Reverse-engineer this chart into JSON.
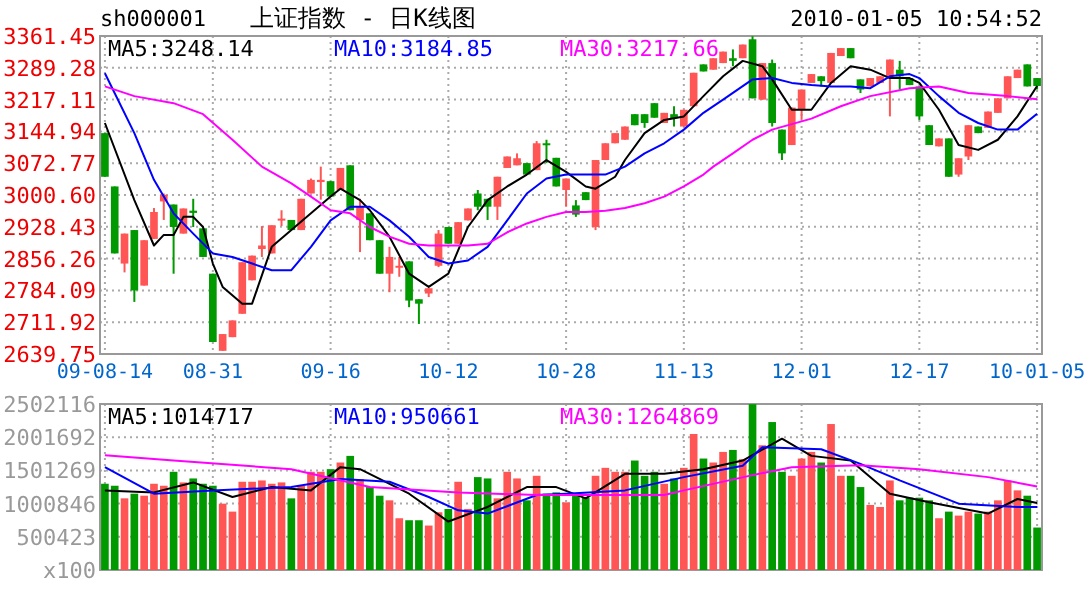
{
  "chart_data": [
    {
      "type": "candlestick",
      "title": "上证指数 - 日K线图",
      "annotations": [
        "sh000001",
        "2010-01-05 10:54:52"
      ],
      "categories": [
        "09-08-14",
        null,
        null,
        null,
        null,
        null,
        null,
        null,
        null,
        null,
        null,
        "08-31",
        null,
        null,
        null,
        null,
        null,
        null,
        null,
        null,
        null,
        null,
        null,
        "09-16",
        null,
        null,
        null,
        null,
        null,
        null,
        null,
        null,
        null,
        null,
        null,
        "10-12",
        null,
        null,
        null,
        null,
        null,
        null,
        null,
        null,
        null,
        null,
        null,
        "10-28",
        null,
        null,
        null,
        null,
        null,
        null,
        null,
        null,
        null,
        null,
        null,
        "11-13",
        null,
        null,
        null,
        null,
        null,
        null,
        null,
        null,
        null,
        null,
        null,
        "12-01",
        null,
        null,
        null,
        null,
        null,
        null,
        null,
        null,
        null,
        null,
        null,
        "12-17",
        null,
        null,
        null,
        null,
        null,
        null,
        null,
        null,
        null,
        null,
        null,
        "10-01-05"
      ],
      "ohlc": [
        [
          3141,
          3141,
          3042,
          3042
        ],
        [
          3020,
          3020,
          2868,
          2868
        ],
        [
          2845,
          2913,
          2825,
          2913
        ],
        [
          2921,
          2921,
          2758,
          2784
        ],
        [
          2795,
          2898,
          2795,
          2898
        ],
        [
          2901,
          2971,
          2901,
          2962
        ],
        [
          2986,
          3004,
          2944,
          3001
        ],
        [
          2979,
          2979,
          2822,
          2928
        ],
        [
          2913,
          2970,
          2913,
          2970
        ],
        [
          2965,
          2992,
          2928,
          2960
        ],
        [
          2925,
          2925,
          2860,
          2860
        ],
        [
          2822,
          2822,
          2667,
          2667
        ],
        [
          2647,
          2685,
          2647,
          2685
        ],
        [
          2678,
          2716,
          2678,
          2716
        ],
        [
          2731,
          2848,
          2731,
          2848
        ],
        [
          2807,
          2863,
          2807,
          2863
        ],
        [
          2878,
          2930,
          2860,
          2886
        ],
        [
          2868,
          2932,
          2868,
          2932
        ],
        [
          2944,
          2966,
          2930,
          2947
        ],
        [
          2944,
          2944,
          2921,
          2921
        ],
        [
          2921,
          2992,
          2921,
          2992
        ],
        [
          3004,
          3038,
          3004,
          3035
        ],
        [
          3030,
          3065,
          2990,
          3035
        ],
        [
          3032,
          3032,
          2997,
          2997
        ],
        [
          3012,
          3062,
          3012,
          3062
        ],
        [
          3068,
          3068,
          2966,
          2966
        ],
        [
          2944,
          2992,
          2871,
          2974
        ],
        [
          2959,
          2959,
          2898,
          2898
        ],
        [
          2898,
          2898,
          2822,
          2822
        ],
        [
          2822,
          2883,
          2780,
          2860
        ],
        [
          2837,
          2860,
          2815,
          2840
        ],
        [
          2850,
          2850,
          2746,
          2761
        ],
        [
          2764,
          2764,
          2708,
          2754
        ],
        [
          2777,
          2789,
          2769,
          2789
        ],
        [
          2840,
          2921,
          2837,
          2913
        ],
        [
          2928,
          2928,
          2890,
          2890
        ],
        [
          2890,
          2939,
          2890,
          2939
        ],
        [
          2943,
          2970,
          2943,
          2970
        ],
        [
          3004,
          3012,
          2966,
          2974
        ],
        [
          2992,
          2992,
          2944,
          2974
        ],
        [
          2974,
          3042,
          2944,
          3042
        ],
        [
          3062,
          3088,
          3062,
          3088
        ],
        [
          3068,
          3095,
          3068,
          3084
        ],
        [
          3073,
          3073,
          3047,
          3047
        ],
        [
          3057,
          3123,
          3057,
          3118
        ],
        [
          3118,
          3126,
          3073,
          3114
        ],
        [
          3085,
          3085,
          3020,
          3020
        ],
        [
          3012,
          3038,
          2974,
          3038
        ],
        [
          2977,
          2989,
          2951,
          2956
        ],
        [
          3007,
          3007,
          2989,
          2989
        ],
        [
          2928,
          3080,
          2921,
          3080
        ],
        [
          3080,
          3118,
          3080,
          3118
        ],
        [
          3118,
          3141,
          3118,
          3141
        ],
        [
          3126,
          3156,
          3126,
          3156
        ],
        [
          3184,
          3184,
          3159,
          3159
        ],
        [
          3184,
          3184,
          3153,
          3164
        ],
        [
          3209,
          3209,
          3176,
          3176
        ],
        [
          3164,
          3187,
          3164,
          3187
        ],
        [
          3184,
          3202,
          3156,
          3175
        ],
        [
          3156,
          3194,
          3156,
          3194
        ],
        [
          3202,
          3278,
          3202,
          3278
        ],
        [
          3297,
          3297,
          3281,
          3281
        ],
        [
          3285,
          3311,
          3285,
          3311
        ],
        [
          3300,
          3326,
          3300,
          3326
        ],
        [
          3311,
          3331,
          3293,
          3305
        ],
        [
          3311,
          3342,
          3311,
          3342
        ],
        [
          3354,
          3361,
          3220,
          3220
        ],
        [
          3217,
          3300,
          3217,
          3300
        ],
        [
          3300,
          3308,
          3156,
          3164
        ],
        [
          3149,
          3149,
          3080,
          3095
        ],
        [
          3114,
          3199,
          3114,
          3199
        ],
        [
          3194,
          3240,
          3171,
          3240
        ],
        [
          3255,
          3275,
          3255,
          3275
        ],
        [
          3270,
          3270,
          3247,
          3259
        ],
        [
          3255,
          3323,
          3255,
          3323
        ],
        [
          3316,
          3334,
          3316,
          3334
        ],
        [
          3334,
          3334,
          3311,
          3311
        ],
        [
          3263,
          3263,
          3232,
          3240
        ],
        [
          3247,
          3266,
          3247,
          3266
        ],
        [
          3255,
          3270,
          3255,
          3270
        ],
        [
          3270,
          3308,
          3179,
          3308
        ],
        [
          3285,
          3305,
          3240,
          3270
        ],
        [
          3266,
          3266,
          3250,
          3250
        ],
        [
          3247,
          3247,
          3171,
          3179
        ],
        [
          3159,
          3159,
          3114,
          3114
        ],
        [
          3111,
          3129,
          3111,
          3129
        ],
        [
          3129,
          3129,
          3042,
          3042
        ],
        [
          3047,
          3084,
          3042,
          3084
        ],
        [
          3088,
          3159,
          3080,
          3159
        ],
        [
          3156,
          3156,
          3141,
          3141
        ],
        [
          3153,
          3190,
          3153,
          3190
        ],
        [
          3187,
          3220,
          3187,
          3220
        ],
        [
          3220,
          3270,
          3220,
          3270
        ],
        [
          3266,
          3285,
          3266,
          3285
        ],
        [
          3297,
          3297,
          3247,
          3247
        ],
        [
          3266,
          3266,
          3240,
          3248
        ]
      ],
      "colors": [
        "#009900",
        "#009900",
        "#ff5555",
        "#009900",
        "#ff5555",
        "#ff5555",
        "#ff5555",
        "#009900",
        "#ff5555",
        "#009900",
        "#009900",
        "#009900",
        "#ff5555",
        "#ff5555",
        "#ff5555",
        "#ff5555",
        "#ff5555",
        "#ff5555",
        "#ff5555",
        "#009900",
        "#ff5555",
        "#ff5555",
        "#ff5555",
        "#009900",
        "#ff5555",
        "#009900",
        "#ff5555",
        "#009900",
        "#009900",
        "#ff5555",
        "#ff5555",
        "#009900",
        "#009900",
        "#ff5555",
        "#ff5555",
        "#009900",
        "#ff5555",
        "#ff5555",
        "#009900",
        "#009900",
        "#ff5555",
        "#ff5555",
        "#ff5555",
        "#009900",
        "#ff5555",
        "#009900",
        "#009900",
        "#ff5555",
        "#009900",
        "#009900",
        "#ff5555",
        "#ff5555",
        "#ff5555",
        "#ff5555",
        "#009900",
        "#009900",
        "#009900",
        "#ff5555",
        "#009900",
        "#ff5555",
        "#ff5555",
        "#009900",
        "#ff5555",
        "#ff5555",
        "#009900",
        "#ff5555",
        "#009900",
        "#ff5555",
        "#009900",
        "#009900",
        "#ff5555",
        "#ff5555",
        "#ff5555",
        "#009900",
        "#ff5555",
        "#ff5555",
        "#009900",
        "#009900",
        "#ff5555",
        "#ff5555",
        "#ff5555",
        "#009900",
        "#009900",
        "#009900",
        "#009900",
        "#ff5555",
        "#009900",
        "#ff5555",
        "#ff5555",
        "#009900",
        "#ff5555",
        "#ff5555",
        "#ff5555",
        "#ff5555",
        "#009900",
        "#009900"
      ],
      "ylim": [
        2639.75,
        3361.45
      ],
      "yticks": [
        {
          "value": 2639.75,
          "label": "2639.75"
        },
        {
          "value": 2711.92,
          "label": "2711.92"
        },
        {
          "value": 2784.09,
          "label": "2784.09"
        },
        {
          "value": 2856.26,
          "label": "2856.26"
        },
        {
          "value": 2928.43,
          "label": "2928.43"
        },
        {
          "value": 3000.6,
          "label": "3000.60"
        },
        {
          "value": 3072.77,
          "label": "3072.77"
        },
        {
          "value": 3144.94,
          "label": "3144.94"
        },
        {
          "value": 3217.11,
          "label": "3217.11"
        },
        {
          "value": 3289.28,
          "label": "3289.28"
        },
        {
          "value": 3361.45,
          "label": "3361.45"
        }
      ],
      "grid": true,
      "legend": "top left",
      "series": [
        {
          "name": "MA5:3248.14",
          "type": "line",
          "color": "#000000",
          "values": [
            3164,
            null,
            null,
            2989,
            null,
            2886,
            2910,
            2910,
            2951,
            2951,
            2928,
            2845,
            2792,
            null,
            2754,
            2754,
            null,
            2883,
            null,
            2921,
            null,
            2959,
            null,
            2997,
            3015,
            null,
            2989,
            2966,
            null,
            2906,
            null,
            2822,
            null,
            2792,
            null,
            2822,
            null,
            2928,
            null,
            2989,
            null,
            3020,
            null,
            3047,
            null,
            3080,
            null,
            3053,
            null,
            3020,
            3015,
            null,
            3042,
            3080,
            null,
            3141,
            null,
            3171,
            null,
            3179,
            null,
            3225,
            null,
            3270,
            null,
            3305,
            null,
            3293,
            3263,
            null,
            3194,
            null,
            3194,
            null,
            3255,
            null,
            3293,
            null,
            3285,
            null,
            3266,
            null,
            3266,
            3255,
            null,
            3194,
            null,
            3114,
            null,
            3103,
            null,
            3126,
            null,
            3179,
            null,
            3248
          ]
        },
        {
          "name": "MA10:3184.85",
          "type": "line",
          "color": "#0000ff",
          "values": [
            3277,
            null,
            null,
            3141,
            null,
            3035,
            null,
            2959,
            null,
            2913,
            null,
            2868,
            null,
            2860,
            null,
            2845,
            null,
            2830,
            null,
            2830,
            null,
            2883,
            null,
            2943,
            null,
            2974,
            null,
            2974,
            null,
            2943,
            null,
            2906,
            null,
            2860,
            null,
            2845,
            null,
            2852,
            null,
            2883,
            null,
            2943,
            null,
            3004,
            null,
            3038,
            null,
            3047,
            null,
            3047,
            null,
            3047,
            null,
            3065,
            null,
            3095,
            null,
            3118,
            null,
            3149,
            null,
            3187,
            null,
            3217,
            null,
            null,
            3263,
            null,
            3266,
            null,
            3255,
            null,
            3250,
            null,
            3247,
            null,
            3247,
            null,
            3243,
            null,
            3270,
            null,
            3275,
            3266,
            null,
            3225,
            null,
            3187,
            null,
            3164,
            null,
            3149,
            null,
            3149,
            null,
            3185
          ]
        },
        {
          "name": "MA30:3217.66",
          "type": "line",
          "color": "#ff00ff",
          "values": [
            3247,
            null,
            null,
            3225,
            null,
            null,
            null,
            3209,
            null,
            null,
            3184,
            null,
            null,
            3126,
            null,
            null,
            3065,
            null,
            null,
            3027,
            null,
            2997,
            null,
            2966,
            null,
            2959,
            null,
            2928,
            null,
            2906,
            null,
            2890,
            null,
            2886,
            null,
            2886,
            null,
            2886,
            null,
            2890,
            null,
            2916,
            null,
            2936,
            null,
            2951,
            null,
            2962,
            null,
            2962,
            null,
            2965,
            null,
            2971,
            null,
            2982,
            null,
            2997,
            null,
            3020,
            null,
            3047,
            3065,
            null,
            3095,
            null,
            3126,
            null,
            3149,
            null,
            null,
            null,
            3174,
            null,
            null,
            3202,
            null,
            null,
            3225,
            null,
            null,
            null,
            3243,
            null,
            null,
            3247,
            null,
            null,
            3232,
            null,
            null,
            null,
            3225,
            null,
            null,
            3218
          ]
        }
      ]
    },
    {
      "type": "bar",
      "categories": [
        null,
        null,
        null,
        null,
        null,
        null,
        null,
        null,
        null,
        null,
        null,
        null,
        null,
        null,
        null,
        null,
        null,
        null,
        null,
        null,
        null,
        null,
        null,
        null,
        null,
        null,
        null,
        null,
        null,
        null,
        null,
        null,
        null,
        null,
        null,
        null,
        null,
        null,
        null,
        null,
        null,
        null,
        null,
        null,
        null,
        null,
        null,
        null,
        null,
        null,
        null,
        null,
        null,
        null,
        null,
        null,
        null,
        null,
        null,
        null,
        null,
        null,
        null,
        null,
        null,
        null,
        null,
        null,
        null,
        null,
        null,
        null,
        null,
        null,
        null,
        null,
        null,
        null,
        null,
        null,
        null,
        null,
        null,
        null,
        null,
        null,
        null,
        null,
        null,
        null,
        null,
        null,
        null,
        null,
        null,
        null
      ],
      "values": [
        1300000,
        1270000,
        1080000,
        1150000,
        1120000,
        1300000,
        1270000,
        1480000,
        1320000,
        1380000,
        1300000,
        1270000,
        1000000,
        880000,
        1330000,
        1330000,
        1350000,
        1300000,
        1320000,
        1080000,
        1270000,
        1480000,
        1480000,
        1520000,
        1620000,
        1720000,
        1370000,
        1250000,
        1120000,
        1050000,
        780000,
        750000,
        750000,
        670000,
        870000,
        920000,
        1330000,
        920000,
        1400000,
        1380000,
        1080000,
        1480000,
        1380000,
        1050000,
        1420000,
        1150000,
        1170000,
        1020000,
        1140000,
        1090000,
        1420000,
        1540000,
        1480000,
        1480000,
        1650000,
        1420000,
        1480000,
        1300000,
        1380000,
        1540000,
        2050000,
        1680000,
        1620000,
        1780000,
        1810000,
        1670000,
        2500000,
        1880000,
        2230000,
        1480000,
        1420000,
        1680000,
        1780000,
        1620000,
        2200000,
        1420000,
        1420000,
        1250000,
        980000,
        950000,
        1350000,
        1050000,
        1090000,
        1090000,
        1050000,
        780000,
        880000,
        820000,
        880000,
        850000,
        880000,
        1050000,
        1350000,
        1200000,
        1120000,
        640000
      ],
      "colors": [
        "#009900",
        "#009900",
        "#ff5555",
        "#009900",
        "#ff5555",
        "#ff5555",
        "#ff5555",
        "#009900",
        "#ff5555",
        "#009900",
        "#009900",
        "#009900",
        "#ff5555",
        "#ff5555",
        "#ff5555",
        "#ff5555",
        "#ff5555",
        "#ff5555",
        "#ff5555",
        "#009900",
        "#ff5555",
        "#ff5555",
        "#ff5555",
        "#009900",
        "#ff5555",
        "#009900",
        "#ff5555",
        "#009900",
        "#009900",
        "#ff5555",
        "#ff5555",
        "#009900",
        "#009900",
        "#ff5555",
        "#ff5555",
        "#009900",
        "#ff5555",
        "#ff5555",
        "#009900",
        "#009900",
        "#ff5555",
        "#ff5555",
        "#ff5555",
        "#009900",
        "#ff5555",
        "#009900",
        "#009900",
        "#ff5555",
        "#009900",
        "#009900",
        "#ff5555",
        "#ff5555",
        "#ff5555",
        "#ff5555",
        "#009900",
        "#009900",
        "#009900",
        "#ff5555",
        "#009900",
        "#ff5555",
        "#ff5555",
        "#009900",
        "#ff5555",
        "#ff5555",
        "#009900",
        "#ff5555",
        "#009900",
        "#ff5555",
        "#009900",
        "#009900",
        "#ff5555",
        "#ff5555",
        "#ff5555",
        "#009900",
        "#ff5555",
        "#ff5555",
        "#009900",
        "#009900",
        "#ff5555",
        "#ff5555",
        "#ff5555",
        "#009900",
        "#009900",
        "#009900",
        "#009900",
        "#ff5555",
        "#009900",
        "#ff5555",
        "#ff5555",
        "#009900",
        "#ff5555",
        "#ff5555",
        "#ff5555",
        "#ff5555",
        "#009900",
        "#009900"
      ],
      "tick_labels": "y",
      "ylim": [
        0,
        2502116
      ],
      "yticks": [
        {
          "value": 0,
          "label": "x100"
        },
        500423,
        1000846,
        1501269,
        2001692,
        2502116
      ],
      "grid": true,
      "legend": "top left",
      "series": [
        {
          "name": "MA5:1014717",
          "type": "line",
          "color": "#000000",
          "values": [
            1200000,
            null,
            null,
            null,
            null,
            1170000,
            null,
            null,
            null,
            1320000,
            null,
            null,
            null,
            1100000,
            null,
            null,
            null,
            1250000,
            null,
            null,
            null,
            1200000,
            null,
            null,
            1550000,
            null,
            1520000,
            null,
            null,
            null,
            null,
            1150000,
            null,
            null,
            null,
            730000,
            null,
            null,
            null,
            950000,
            null,
            null,
            null,
            1250000,
            null,
            null,
            1250000,
            null,
            null,
            1080000,
            null,
            null,
            null,
            1450000,
            null,
            null,
            null,
            1450000,
            null,
            null,
            null,
            1520000,
            null,
            null,
            null,
            1650000,
            null,
            null,
            null,
            1980000,
            null,
            null,
            1720000,
            null,
            null,
            null,
            1650000,
            null,
            null,
            null,
            1150000,
            null,
            null,
            null,
            1020000,
            null,
            null,
            null,
            null,
            null,
            850000,
            null,
            null,
            1070000,
            null,
            1010000
          ]
        },
        {
          "name": "MA10:950661",
          "type": "line",
          "color": "#0000ff",
          "values": [
            1550000,
            null,
            null,
            null,
            null,
            1150000,
            null,
            null,
            null,
            null,
            null,
            1200000,
            null,
            null,
            null,
            null,
            null,
            null,
            null,
            1250000,
            null,
            null,
            null,
            null,
            1370000,
            null,
            null,
            null,
            null,
            1330000,
            null,
            null,
            null,
            1100000,
            null,
            null,
            900000,
            null,
            null,
            850000,
            null,
            null,
            null,
            null,
            1130000,
            null,
            null,
            1150000,
            null,
            null,
            null,
            null,
            null,
            1200000,
            null,
            null,
            null,
            null,
            null,
            1400000,
            null,
            null,
            null,
            null,
            null,
            1570000,
            null,
            1850000,
            null,
            null,
            null,
            null,
            null,
            1820000,
            null,
            null,
            null,
            1600000,
            null,
            null,
            null,
            1350000,
            null,
            null,
            null,
            null,
            null,
            1000000,
            null,
            null,
            null,
            null,
            null,
            950000,
            null,
            950000
          ]
        },
        {
          "name": "MA30:1264869",
          "type": "line",
          "color": "#ff00ff",
          "values": [
            1730000,
            null,
            null,
            null,
            null,
            null,
            null,
            1650000,
            null,
            null,
            null,
            null,
            null,
            null,
            null,
            null,
            null,
            null,
            null,
            1520000,
            null,
            null,
            null,
            null,
            null,
            null,
            null,
            1250000,
            null,
            null,
            null,
            null,
            null,
            null,
            null,
            null,
            1170000,
            null,
            null,
            null,
            null,
            null,
            null,
            null,
            1130000,
            null,
            null,
            null,
            null,
            null,
            null,
            null,
            null,
            null,
            null,
            null,
            null,
            1130000,
            null,
            1200000,
            null,
            null,
            null,
            null,
            null,
            null,
            1430000,
            null,
            null,
            null,
            1550000,
            null,
            null,
            null,
            null,
            null,
            null,
            1580000,
            null,
            null,
            null,
            null,
            null,
            1520000,
            null,
            null,
            null,
            null,
            null,
            null,
            1400000,
            null,
            null,
            null,
            null,
            1260000
          ]
        }
      ]
    }
  ]
}
